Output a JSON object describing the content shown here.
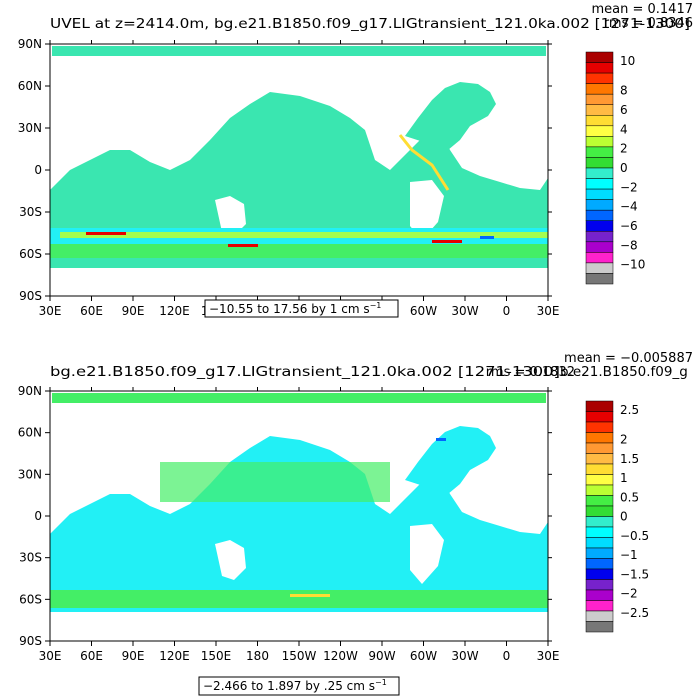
{
  "panels": [
    {
      "title": "UVEL at z=2414.0m, bg.e21.B1850.f09_g17.LIGtransient_121.0ka.002 [1271-1300]",
      "mean_text": "mean = 0.1417",
      "rms_text": "rms = 0.8346",
      "range_text": "−10.55 to 17.56 by 1 cm s",
      "range_sup": "−1",
      "colorbar": {
        "labels": [
          "10",
          "8",
          "6",
          "4",
          "2",
          "0",
          "−2",
          "−4",
          "−6",
          "−8",
          "−10"
        ],
        "colors": [
          "#aa0000",
          "#e60000",
          "#ff3300",
          "#ff7700",
          "#ff9933",
          "#ffbb44",
          "#ffdd33",
          "#ffff44",
          "#bbff33",
          "#44ee44",
          "#33dd33",
          "#33eecc",
          "#00ffff",
          "#00ddff",
          "#00aaff",
          "#0066ff",
          "#0000ee",
          "#7722cc",
          "#aa00cc",
          "#ff22cc",
          "#cccccc",
          "#777777"
        ]
      }
    },
    {
      "title": "bg.e21.B1850.f09_g17.LIGtransient_121.0ka.002 [1271-1300]",
      "mean_text": "mean = −0.005887",
      "rms_text": "rms = 0.1832",
      "overlap_text": "b.e21.B1850.f09_g",
      "range_text": "−2.466 to 1.897 by .25 cm s",
      "range_sup": "−1",
      "colorbar": {
        "labels": [
          "2.5",
          "2",
          "1.5",
          "1",
          "0.5",
          "0",
          "−0.5",
          "−1",
          "−1.5",
          "−2",
          "−2.5"
        ],
        "colors": [
          "#aa0000",
          "#e60000",
          "#ff3300",
          "#ff7700",
          "#ff9933",
          "#ffbb44",
          "#ffdd33",
          "#ffff44",
          "#bbff33",
          "#44ee44",
          "#33dd33",
          "#33eecc",
          "#00ffff",
          "#00ddff",
          "#00aaff",
          "#0066ff",
          "#0000ee",
          "#7722cc",
          "#aa00cc",
          "#ff22cc",
          "#cccccc",
          "#777777"
        ]
      }
    }
  ],
  "axes": {
    "lat_labels": [
      "90N",
      "60N",
      "30N",
      "0",
      "30S",
      "60S",
      "90S"
    ],
    "lon_labels": [
      "30E",
      "60E",
      "90E",
      "120E",
      "150E",
      "180",
      "150W",
      "120W",
      "90W",
      "60W",
      "30W",
      "0",
      "30E"
    ]
  },
  "palette": {
    "ocean_main": "#3ae6b0",
    "ocean_band": "#22f0f5",
    "ocean_light": "#44ee66",
    "land": "#ffffff"
  }
}
